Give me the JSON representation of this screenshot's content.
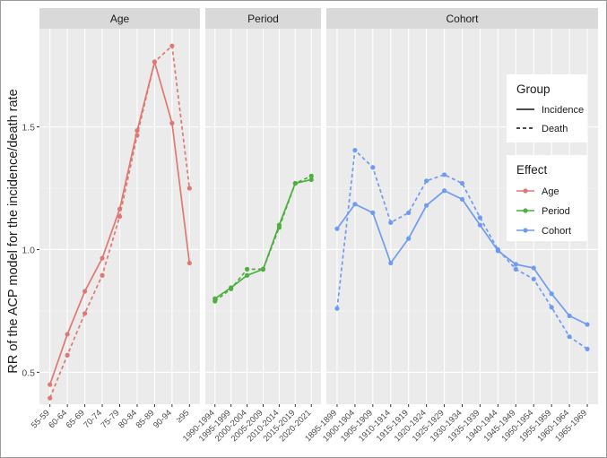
{
  "chart_data": {
    "type": "line",
    "ylabel": "RR of the ACP model for the incidence/death rate",
    "ylim": [
      0.37,
      1.9
    ],
    "yticks": [
      0.5,
      1.0,
      1.5
    ],
    "ytick_labels": [
      "0.5",
      "1.0",
      "1.5"
    ],
    "grid": true,
    "colors": {
      "Age": "#e07872",
      "Period": "#4caf3e",
      "Cohort": "#6f9bf0"
    },
    "panels": [
      {
        "name": "Age",
        "categories": [
          "55-59",
          "60-64",
          "65-69",
          "70-74",
          "75-79",
          "80-84",
          "85-89",
          "90-94",
          "≥95"
        ],
        "series": [
          {
            "group": "Incidence",
            "values": [
              0.45,
              0.655,
              0.83,
              0.965,
              1.165,
              1.485,
              1.765,
              1.515,
              0.945
            ]
          },
          {
            "group": "Death",
            "values": [
              0.395,
              0.57,
              0.74,
              0.895,
              1.135,
              1.465,
              1.765,
              1.83,
              1.25
            ]
          }
        ]
      },
      {
        "name": "Period",
        "categories": [
          "1990-1994",
          "1995-1999",
          "2000-2004",
          "2005-2009",
          "2010-2014",
          "2015-2019",
          "2020-2021"
        ],
        "series": [
          {
            "group": "Incidence",
            "values": [
              0.8,
              0.845,
              0.895,
              0.92,
              1.1,
              1.27,
              1.285
            ]
          },
          {
            "group": "Death",
            "values": [
              0.79,
              0.84,
              0.92,
              0.92,
              1.09,
              1.27,
              1.3
            ]
          }
        ]
      },
      {
        "name": "Cohort",
        "categories": [
          "1895-1899",
          "1900-1904",
          "1905-1909",
          "1910-1914",
          "1915-1919",
          "1920-1924",
          "1925-1929",
          "1930-1934",
          "1935-1939",
          "1940-1944",
          "1945-1949",
          "1950-1954",
          "1955-1959",
          "1960-1964",
          "1965-1969"
        ],
        "series": [
          {
            "group": "Incidence",
            "values": [
              1.085,
              1.185,
              1.15,
              0.945,
              1.045,
              1.18,
              1.24,
              1.205,
              1.1,
              0.995,
              0.94,
              0.925,
              0.82,
              0.73,
              0.695
            ]
          },
          {
            "group": "Death",
            "values": [
              0.76,
              1.405,
              1.335,
              1.11,
              1.15,
              1.28,
              1.305,
              1.27,
              1.13,
              1.0,
              0.92,
              0.88,
              0.765,
              0.645,
              0.595
            ]
          }
        ]
      }
    ],
    "legend": {
      "placement": "right",
      "group_title": "Group",
      "group_items": [
        {
          "label": "Incidence",
          "linetype": "solid"
        },
        {
          "label": "Death",
          "linetype": "dashed"
        }
      ],
      "effect_title": "Effect",
      "effect_items": [
        "Age",
        "Period",
        "Cohort"
      ]
    }
  }
}
